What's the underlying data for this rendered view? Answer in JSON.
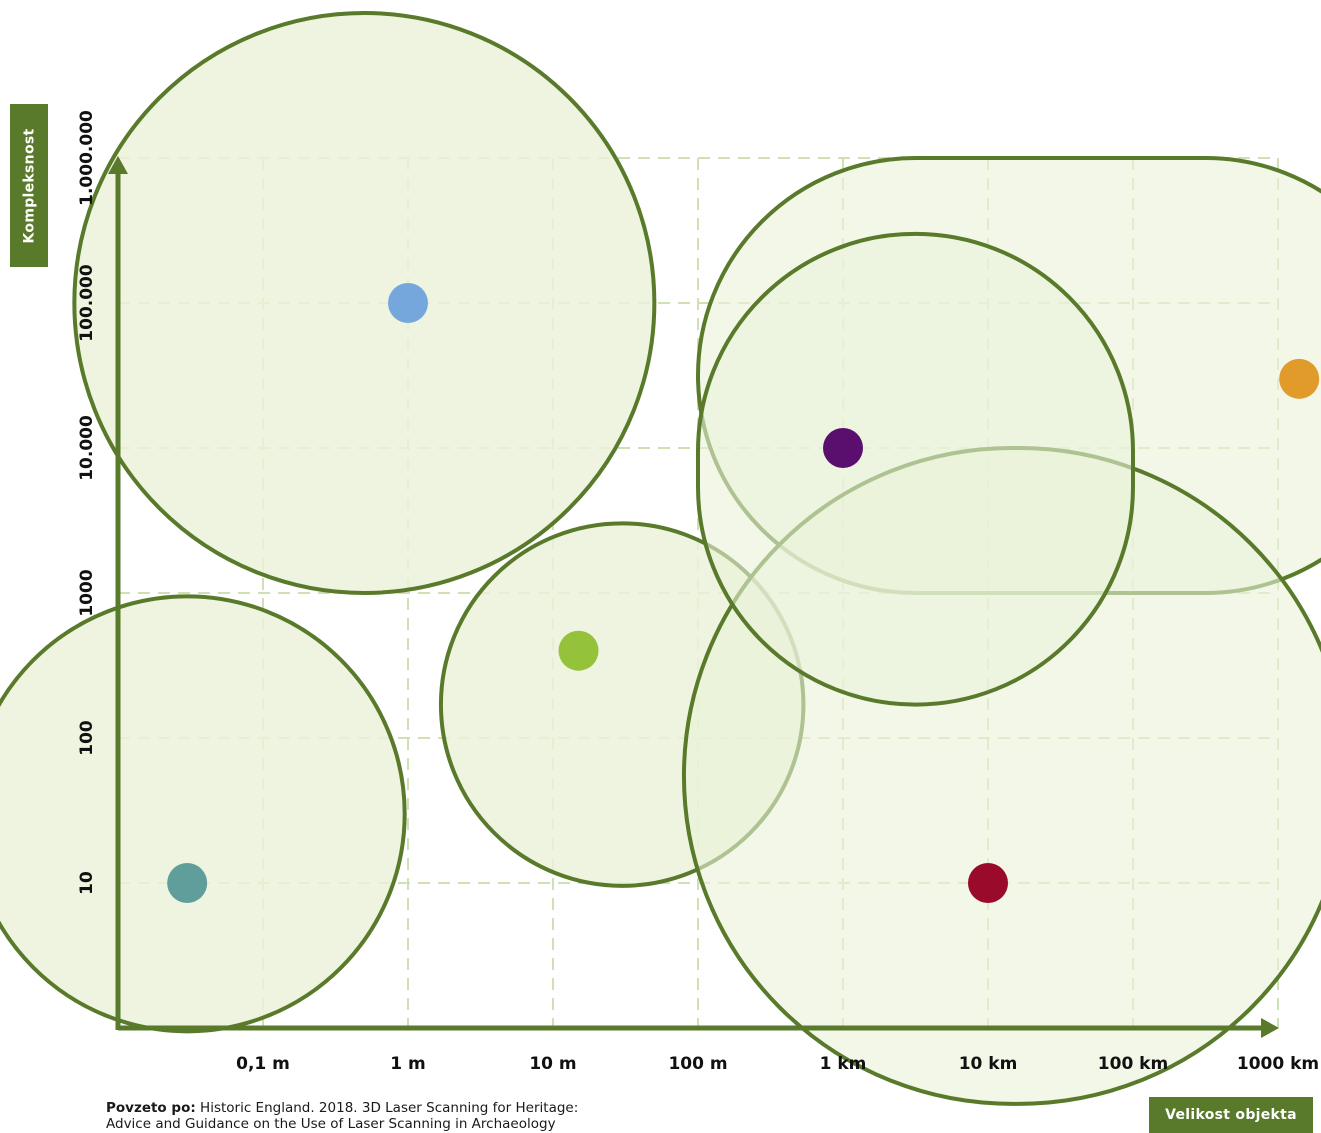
{
  "chart_data": {
    "type": "scatter",
    "xlabel": "Velikost objekta",
    "ylabel": "Kompleksnost",
    "x_ticks": [
      "0,1 m",
      "1 m",
      "10 m",
      "100 m",
      "1 km",
      "10 km",
      "100 km",
      "1000 km"
    ],
    "y_ticks": [
      "10",
      "100",
      "1000",
      "10.000",
      "100.000",
      "1.000.000"
    ],
    "x_scale": "log",
    "y_scale": "log",
    "grid": true,
    "points": [
      {
        "x": 1,
        "y": 100000,
        "color": "#75a7dd"
      },
      {
        "x": 0.03,
        "y": 10,
        "color": "#5f9e9a"
      },
      {
        "x": 15,
        "y": 400,
        "color": "#94c23a"
      },
      {
        "x": 1000,
        "y": 10000,
        "color": "#5a0f6e"
      },
      {
        "x": 10000,
        "y": 10,
        "color": "#9a0a2a"
      },
      {
        "x": 1400000,
        "y": 30000,
        "color": "#e19b2a"
      }
    ],
    "regions": [
      {
        "shape": "circle",
        "center_x": 0.5,
        "center_y": 100000,
        "radius_decades": 2
      },
      {
        "shape": "circle",
        "center_x": 0.03,
        "center_y": 30,
        "radius_decades": 1.5
      },
      {
        "shape": "circle",
        "center_x": 30,
        "center_y": 170,
        "radius_decades": 1.25
      },
      {
        "shape": "capsule",
        "x_from": 100,
        "x_to": 10000000,
        "y_from": 1000,
        "y_to": 1000000
      },
      {
        "shape": "capsule",
        "x_from": 80,
        "x_to": 3000000,
        "y_from": 0.3,
        "y_to": 10000
      },
      {
        "shape": "capsule",
        "x_from": 100,
        "x_to": 100000,
        "y_from": 170,
        "y_to": 300000
      }
    ],
    "colors": {
      "region_fill": "#eaf1d8",
      "region_overlap": "#d2e2b8",
      "region_stroke": "#587a2a",
      "axis": "#587a2a",
      "grid": "#cfe0b4"
    }
  },
  "source": {
    "label": "Povzeto po:",
    "text": "Historic England. 2018. 3D Laser Scanning for Heritage:",
    "text2": "Advice and Guidance on the Use of Laser Scanning in Archaeology"
  }
}
